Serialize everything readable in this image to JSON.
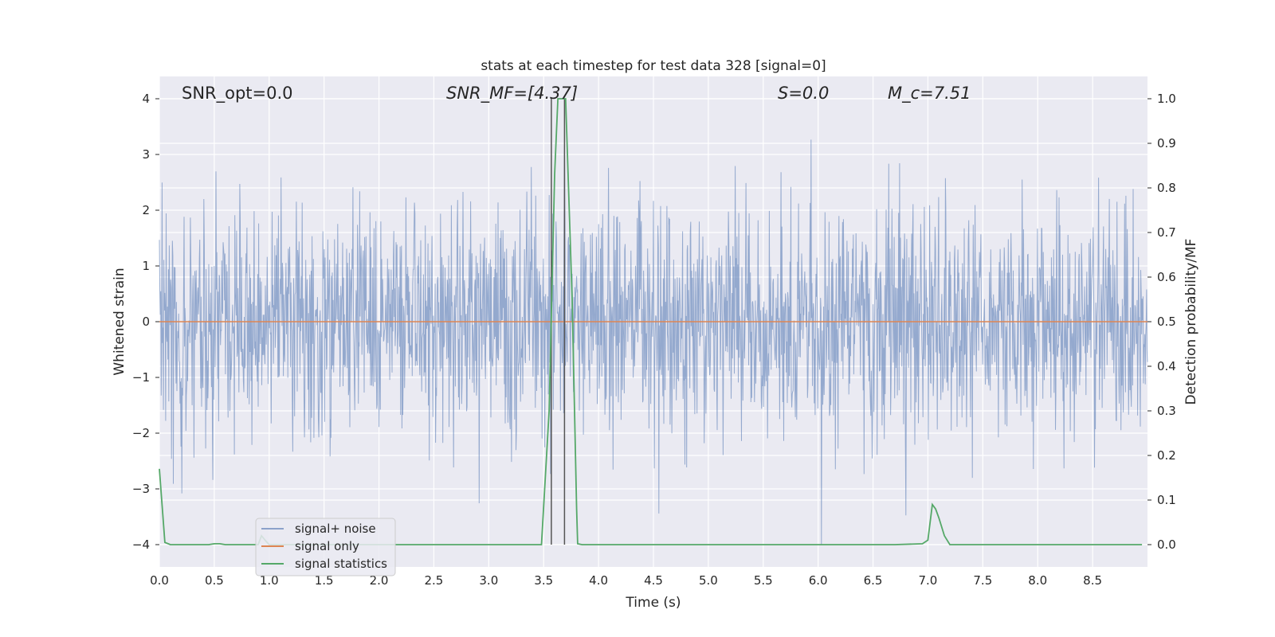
{
  "chart_data": {
    "type": "line",
    "title": "stats at each timestep for test data 328 [signal=0]",
    "xlabel": "Time (s)",
    "ylabel": "Whitened strain",
    "ylabel_right": "Detection probability/MF",
    "xlim": [
      0,
      9
    ],
    "ylim": [
      -4.4,
      4.4
    ],
    "ylim_right": [
      -0.05,
      1.05
    ],
    "xticks": [
      "0.0",
      "0.5",
      "1.0",
      "1.5",
      "2.0",
      "2.5",
      "3.0",
      "3.5",
      "4.0",
      "4.5",
      "5.0",
      "5.5",
      "6.0",
      "6.5",
      "7.0",
      "7.5",
      "8.0",
      "8.5"
    ],
    "yticks": [
      "4",
      "3",
      "2",
      "1",
      "0",
      "−1",
      "−2",
      "−3",
      "−4"
    ],
    "yticks_right": [
      "1.0",
      "0.9",
      "0.8",
      "0.7",
      "0.6",
      "0.5",
      "0.4",
      "0.3",
      "0.2",
      "0.1",
      "0.0"
    ],
    "grid": true,
    "legend_position": "lower-left",
    "annotations": [
      {
        "id": "snr-opt",
        "label": "SNR_opt=0.0"
      },
      {
        "id": "snr-mf",
        "label": "SNR_MF=[4.37]"
      },
      {
        "id": "s-value",
        "label": "S=0.0"
      },
      {
        "id": "mc-value",
        "label": "M_c=7.51"
      }
    ],
    "vertical_markers": [
      3.57,
      3.69
    ],
    "series": [
      {
        "name": "signal+ noise",
        "color": "#4c72b0",
        "style": "dense noise, amplitude mostly within ±2.5, peaks to about ±4"
      },
      {
        "name": "signal only",
        "color": "#dd8452",
        "y": 0.0
      },
      {
        "name": "signal statistics",
        "color": "#55a868",
        "axis": "right",
        "points": [
          [
            0.0,
            0.17
          ],
          [
            0.05,
            0.005
          ],
          [
            0.1,
            0.0
          ],
          [
            0.45,
            0.0
          ],
          [
            0.5,
            0.002
          ],
          [
            0.55,
            0.002
          ],
          [
            0.6,
            0.0
          ],
          [
            0.9,
            0.0
          ],
          [
            0.93,
            0.02
          ],
          [
            0.97,
            0.008
          ],
          [
            1.0,
            0.0
          ],
          [
            3.48,
            0.0
          ],
          [
            3.55,
            0.3
          ],
          [
            3.6,
            0.83
          ],
          [
            3.63,
            1.0
          ],
          [
            3.7,
            1.0
          ],
          [
            3.76,
            0.55
          ],
          [
            3.8,
            0.08
          ],
          [
            3.81,
            0.002
          ],
          [
            3.85,
            0.0
          ],
          [
            6.7,
            0.0
          ],
          [
            6.95,
            0.002
          ],
          [
            7.0,
            0.01
          ],
          [
            7.04,
            0.09
          ],
          [
            7.07,
            0.08
          ],
          [
            7.1,
            0.06
          ],
          [
            7.15,
            0.02
          ],
          [
            7.2,
            0.0
          ],
          [
            8.95,
            0.0
          ]
        ]
      }
    ]
  }
}
